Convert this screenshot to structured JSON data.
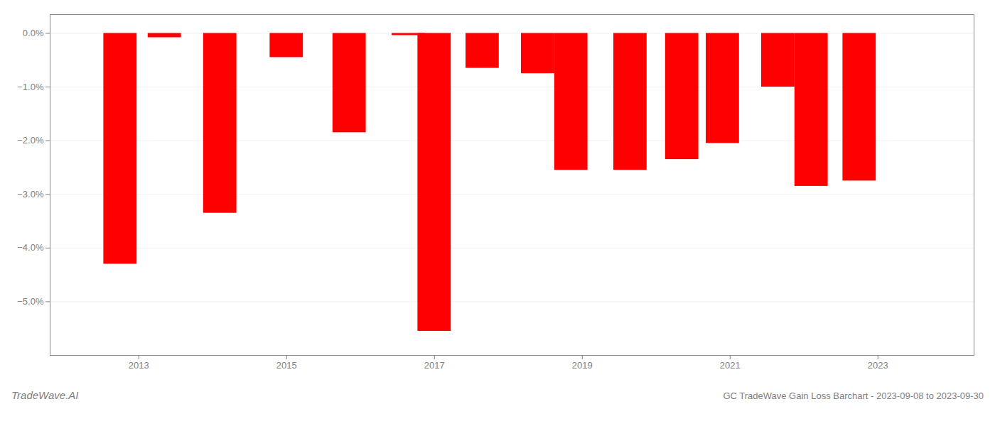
{
  "chart_data": {
    "type": "bar",
    "title": "GC TradeWave Gain Loss Barchart - 2023-09-08 to 2023-09-30",
    "annotations": [
      "TradeWave.AI"
    ],
    "x": [
      2012.75,
      2013.35,
      2014.1,
      2015.0,
      2015.85,
      2016.65,
      2017.0,
      2017.65,
      2018.4,
      2018.85,
      2019.65,
      2020.35,
      2020.9,
      2021.65,
      2022.1,
      2022.75
    ],
    "values": [
      -4.3,
      -0.08,
      -3.35,
      -0.45,
      -1.85,
      -0.04,
      -5.55,
      -0.65,
      -0.75,
      -2.55,
      -2.55,
      -2.35,
      -2.05,
      -1.0,
      -2.85,
      -2.75
    ],
    "color": "#ff0000",
    "xlim": [
      2011.8,
      2024.3
    ],
    "xticks": [
      2013,
      2015,
      2017,
      2019,
      2021,
      2023
    ],
    "ylim": [
      -6.0,
      0.35
    ],
    "yticks": [
      {
        "value": 0.0,
        "label": "0.0%"
      },
      {
        "value": -1.0,
        "label": "−1.0%"
      },
      {
        "value": -2.0,
        "label": "−2.0%"
      },
      {
        "value": -3.0,
        "label": "−3.0%"
      },
      {
        "value": -4.0,
        "label": "−4.0%"
      },
      {
        "value": -5.0,
        "label": "−5.0%"
      }
    ],
    "grid": true
  }
}
